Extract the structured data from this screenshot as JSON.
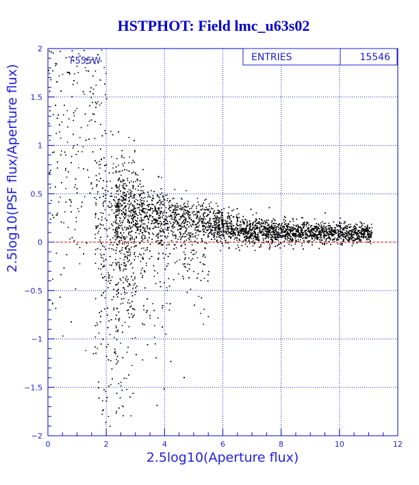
{
  "colors": {
    "axis": "#0000c8",
    "grid": "#1414d0",
    "points": "#000000",
    "reference_line": "#d00000",
    "title": "#0000d0"
  },
  "stats_box": {
    "label": "ENTRIES",
    "value": "15546"
  },
  "filter_label": "F555W",
  "chart_data": {
    "type": "scatter",
    "title": "HSTPHOT: Field lmc_u63s02",
    "xlabel": "2.5log10(Aperture flux)",
    "ylabel": "2.5log10(PSF flux/Aperture flux)",
    "xlim": [
      0,
      12
    ],
    "ylim": [
      -2,
      2
    ],
    "xticks": [
      "0",
      "2",
      "4",
      "6",
      "8",
      "10",
      "12"
    ],
    "yticks": [
      "-2",
      "-1.5",
      "-1",
      "-0.5",
      "0",
      "0.5",
      "1",
      "1.5",
      "2"
    ],
    "grid": true,
    "reference_line": {
      "y": 0,
      "style": "dashed"
    },
    "n_points": 15546,
    "series": [
      {
        "description_points": [
          {
            "x_range": [
              0,
              2
            ],
            "y_range": [
              -1.5,
              2
            ],
            "density": "sparse"
          },
          {
            "x_range": [
              2,
              3
            ],
            "y_range": [
              -1.9,
              0.9
            ],
            "density": "medium"
          },
          {
            "x_range": [
              3,
              6
            ],
            "y_range": [
              -0.3,
              0.45
            ],
            "density": "dense"
          },
          {
            "x_range": [
              6,
              10
            ],
            "y_range": [
              0.0,
              0.25
            ],
            "density": "dense"
          },
          {
            "x_range": [
              10,
              11.5
            ],
            "y_range": [
              0.05,
              0.2
            ],
            "density": "sparse"
          }
        ]
      }
    ]
  }
}
